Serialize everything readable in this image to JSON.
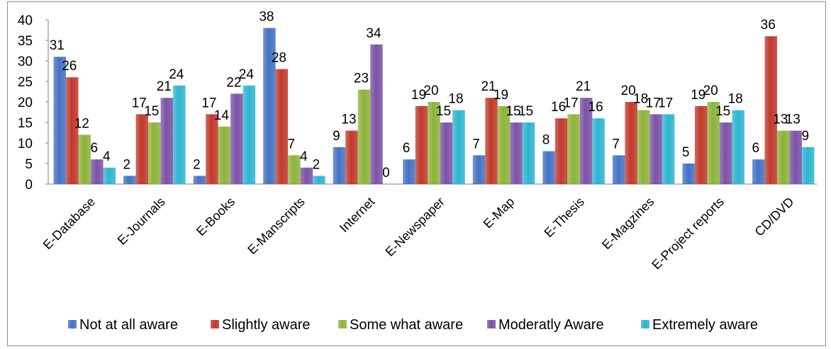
{
  "chart_data": {
    "type": "bar",
    "title": "",
    "xlabel": "",
    "ylabel": "",
    "ylim": [
      0,
      40
    ],
    "yticks": [
      0,
      5,
      10,
      15,
      20,
      25,
      30,
      35,
      40
    ],
    "grid": false,
    "legend_position": "bottom",
    "categories": [
      "E-Database",
      "E-Journals",
      "E-Books",
      "E-Manscripts",
      "Internet",
      "E-Newspaper",
      "E-Map",
      "E-Thesis",
      "E-Magzines",
      "E-Project reports",
      "CD/DVD"
    ],
    "series": [
      {
        "name": "Not at all aware",
        "color": "#4472c4",
        "values": [
          31,
          2,
          2,
          38,
          9,
          6,
          7,
          8,
          7,
          5,
          6
        ]
      },
      {
        "name": "Slightly aware",
        "color": "#c0392b",
        "values": [
          26,
          17,
          17,
          28,
          13,
          19,
          21,
          16,
          20,
          19,
          36
        ]
      },
      {
        "name": "Some what aware",
        "color": "#8db33a",
        "values": [
          12,
          15,
          14,
          7,
          23,
          20,
          19,
          17,
          18,
          20,
          13
        ]
      },
      {
        "name": "Moderatly Aware",
        "color": "#7b52a6",
        "values": [
          6,
          21,
          22,
          4,
          34,
          15,
          15,
          21,
          17,
          15,
          13
        ]
      },
      {
        "name": "Extremely aware",
        "color": "#2eb5d0",
        "values": [
          4,
          24,
          24,
          2,
          0,
          18,
          15,
          16,
          17,
          18,
          9
        ]
      }
    ]
  }
}
